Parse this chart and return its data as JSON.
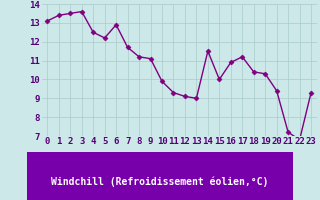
{
  "x": [
    0,
    1,
    2,
    3,
    4,
    5,
    6,
    7,
    8,
    9,
    10,
    11,
    12,
    13,
    14,
    15,
    16,
    17,
    18,
    19,
    20,
    21,
    22,
    23
  ],
  "y": [
    13.1,
    13.4,
    13.5,
    13.6,
    12.5,
    12.2,
    12.9,
    11.7,
    11.2,
    11.1,
    9.9,
    9.3,
    9.1,
    9.0,
    11.5,
    10.0,
    10.9,
    11.2,
    10.4,
    10.3,
    9.4,
    7.2,
    6.8,
    9.3
  ],
  "line_color": "#800080",
  "marker": "D",
  "marker_size": 2.5,
  "bg_color": "#cce8e8",
  "plot_bg_color": "#cce8e8",
  "grid_color": "#aacccc",
  "xlabel": "Windchill (Refroidissement éolien,°C)",
  "xlabel_bg": "#7700aa",
  "xlabel_color": "#ffffff",
  "ylabel": "",
  "xlim_min": -0.5,
  "xlim_max": 23.5,
  "ylim_min": 7,
  "ylim_max": 14,
  "yticks": [
    7,
    8,
    9,
    10,
    11,
    12,
    13,
    14
  ],
  "xticks": [
    0,
    1,
    2,
    3,
    4,
    5,
    6,
    7,
    8,
    9,
    10,
    11,
    12,
    13,
    14,
    15,
    16,
    17,
    18,
    19,
    20,
    21,
    22,
    23
  ],
  "tick_fontsize": 6.5,
  "xlabel_fontsize": 7,
  "line_width": 1.0
}
